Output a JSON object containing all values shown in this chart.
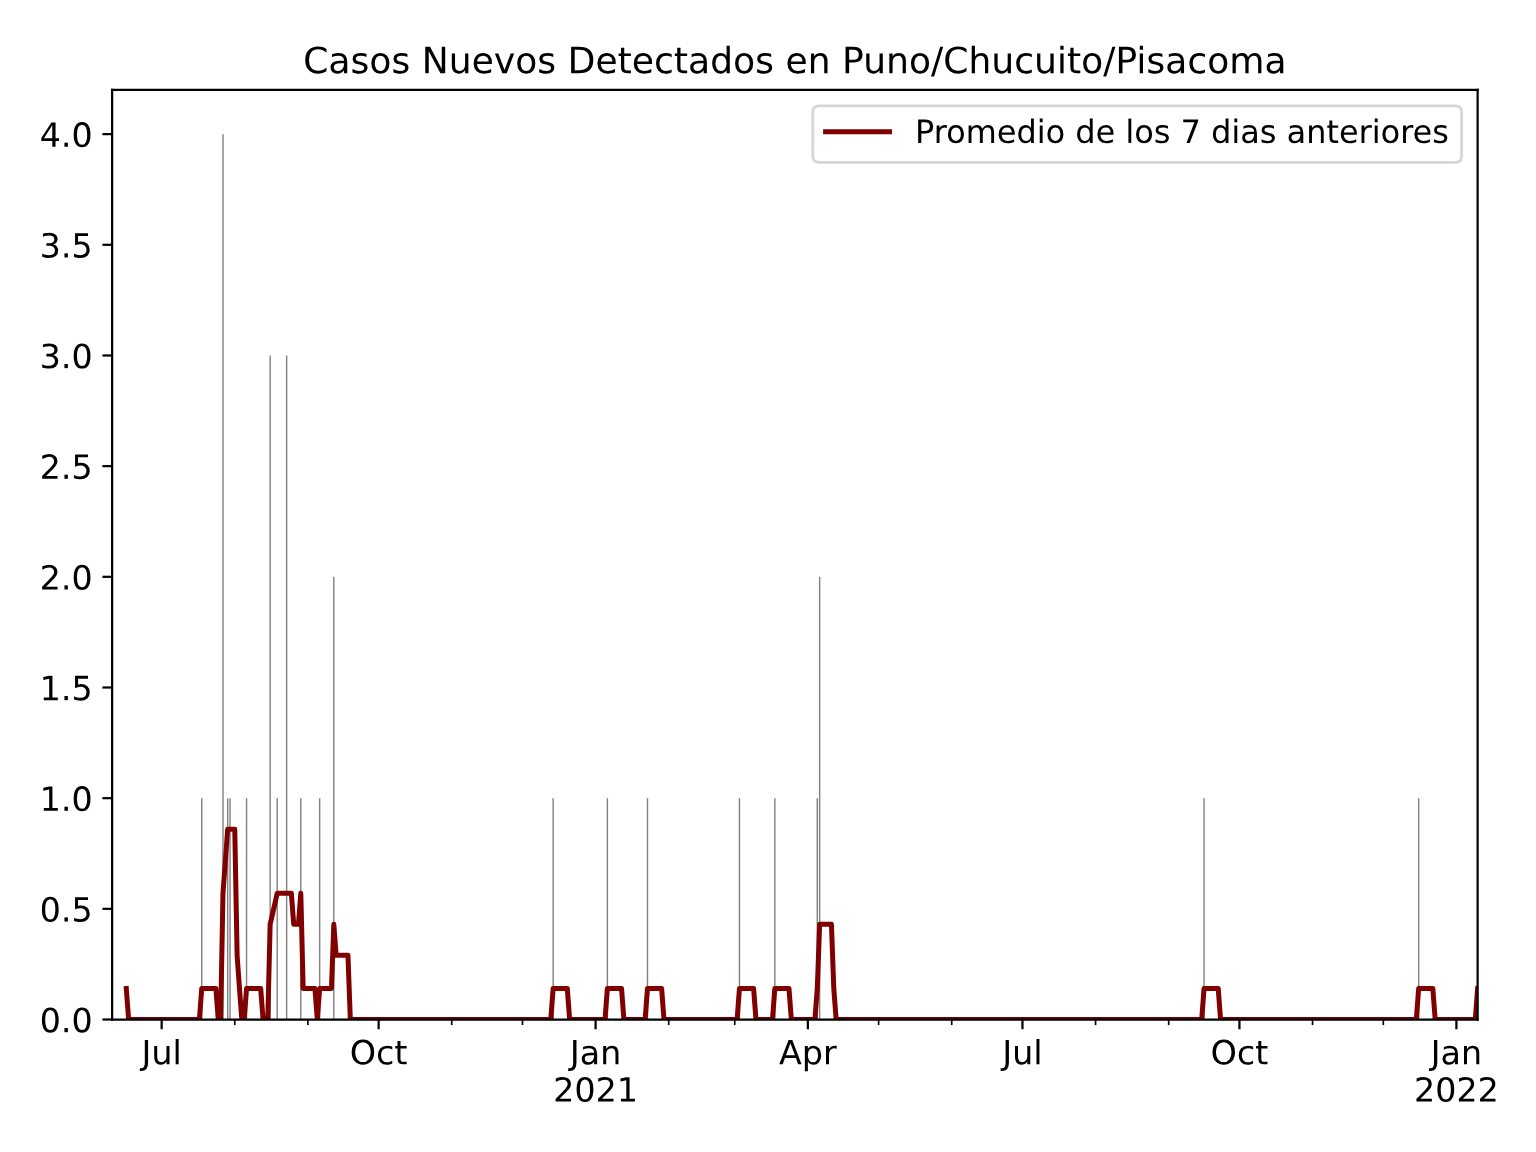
{
  "chart_data": {
    "type": "bar",
    "title": "Casos Nuevos Detectados en Puno/Chucuito/Pisacoma",
    "xlim": [
      "2020-06-10",
      "2022-01-10"
    ],
    "ylim": [
      0,
      4.2
    ],
    "yticks": [
      {
        "value": 0,
        "label": "0.0"
      },
      {
        "value": 0.5,
        "label": "0.5"
      },
      {
        "value": 1,
        "label": "1.0"
      },
      {
        "value": 1.5,
        "label": "1.5"
      },
      {
        "value": 2,
        "label": "2.0"
      },
      {
        "value": 2.5,
        "label": "2.5"
      },
      {
        "value": 3,
        "label": "3.0"
      },
      {
        "value": 3.5,
        "label": "3.5"
      },
      {
        "value": 4,
        "label": "4.0"
      }
    ],
    "xticks": [
      {
        "value": "2020-07-01",
        "label": "Jul"
      },
      {
        "value": "2020-08-01",
        "label": null
      },
      {
        "value": "2020-09-01",
        "label": null
      },
      {
        "value": "2020-10-01",
        "label": "Oct"
      },
      {
        "value": "2020-11-01",
        "label": null
      },
      {
        "value": "2020-12-01",
        "label": null
      },
      {
        "value": "2021-01-01",
        "label": "Jan\n2021"
      },
      {
        "value": "2021-02-01",
        "label": null
      },
      {
        "value": "2021-03-01",
        "label": null
      },
      {
        "value": "2021-04-01",
        "label": "Apr"
      },
      {
        "value": "2021-05-01",
        "label": null
      },
      {
        "value": "2021-06-01",
        "label": null
      },
      {
        "value": "2021-07-01",
        "label": "Jul"
      },
      {
        "value": "2021-08-01",
        "label": null
      },
      {
        "value": "2021-09-01",
        "label": null
      },
      {
        "value": "2021-10-01",
        "label": "Oct"
      },
      {
        "value": "2021-11-01",
        "label": null
      },
      {
        "value": "2021-12-01",
        "label": null
      },
      {
        "value": "2022-01-01",
        "label": "Jan\n2022"
      }
    ],
    "legend": "top right",
    "grid": false,
    "series": [
      {
        "color": "#808080",
        "x": [
          "2020-07-18",
          "2020-07-27",
          "2020-07-29",
          "2020-07-30",
          "2020-08-06",
          "2020-08-16",
          "2020-08-19",
          "2020-08-23",
          "2020-08-29",
          "2020-09-06",
          "2020-09-12",
          "2020-12-14",
          "2021-01-06",
          "2021-01-23",
          "2021-03-03",
          "2021-03-18",
          "2021-04-05",
          "2021-04-06",
          "2021-09-16",
          "2021-12-16"
        ],
        "values": [
          1,
          4,
          1,
          1,
          1,
          3,
          1,
          3,
          1,
          1,
          2,
          1,
          1,
          1,
          1,
          1,
          1,
          2,
          1,
          1
        ]
      },
      {
        "type": "line",
        "name": "Promedio de los 7 dias anteriores",
        "color": "#800000",
        "x": [
          "2020-06-16",
          "2020-06-17",
          "2020-07-17",
          "2020-07-18",
          "2020-07-24",
          "2020-07-25",
          "2020-07-26",
          "2020-07-27",
          "2020-07-29",
          "2020-08-01",
          "2020-08-02",
          "2020-08-03",
          "2020-08-04",
          "2020-08-05",
          "2020-08-06",
          "2020-08-12",
          "2020-08-13",
          "2020-08-15",
          "2020-08-16",
          "2020-08-19",
          "2020-08-25",
          "2020-08-26",
          "2020-08-28",
          "2020-08-29",
          "2020-08-30",
          "2020-09-04",
          "2020-09-05",
          "2020-09-06",
          "2020-09-11",
          "2020-09-12",
          "2020-09-13",
          "2020-09-18",
          "2020-09-19",
          "2020-12-13",
          "2020-12-14",
          "2020-12-20",
          "2020-12-21",
          "2021-01-05",
          "2021-01-06",
          "2021-01-12",
          "2021-01-13",
          "2021-01-22",
          "2021-01-23",
          "2021-01-29",
          "2021-01-30",
          "2021-03-02",
          "2021-03-03",
          "2021-03-09",
          "2021-03-10",
          "2021-03-17",
          "2021-03-18",
          "2021-03-24",
          "2021-03-25",
          "2021-04-04",
          "2021-04-05",
          "2021-04-06",
          "2021-04-11",
          "2021-04-12",
          "2021-04-13",
          "2021-09-15",
          "2021-09-16",
          "2021-09-22",
          "2021-09-23",
          "2021-12-15",
          "2021-12-16",
          "2021-12-22",
          "2021-12-23",
          "2022-01-09",
          "2022-01-10"
        ],
        "values": [
          0.14,
          0,
          0,
          0.14,
          0.14,
          0,
          0,
          0.57,
          0.86,
          0.86,
          0.29,
          0.14,
          0,
          0,
          0.14,
          0.14,
          0,
          0,
          0.43,
          0.57,
          0.57,
          0.43,
          0.43,
          0.57,
          0.14,
          0.14,
          0,
          0.14,
          0.14,
          0.43,
          0.29,
          0.29,
          0,
          0,
          0.14,
          0.14,
          0,
          0,
          0.14,
          0.14,
          0,
          0,
          0.14,
          0.14,
          0,
          0,
          0.14,
          0.14,
          0,
          0,
          0.14,
          0.14,
          0,
          0,
          0.14,
          0.43,
          0.43,
          0.14,
          0,
          0,
          0.14,
          0.14,
          0,
          0,
          0.14,
          0.14,
          0,
          0,
          0.14
        ]
      }
    ]
  }
}
